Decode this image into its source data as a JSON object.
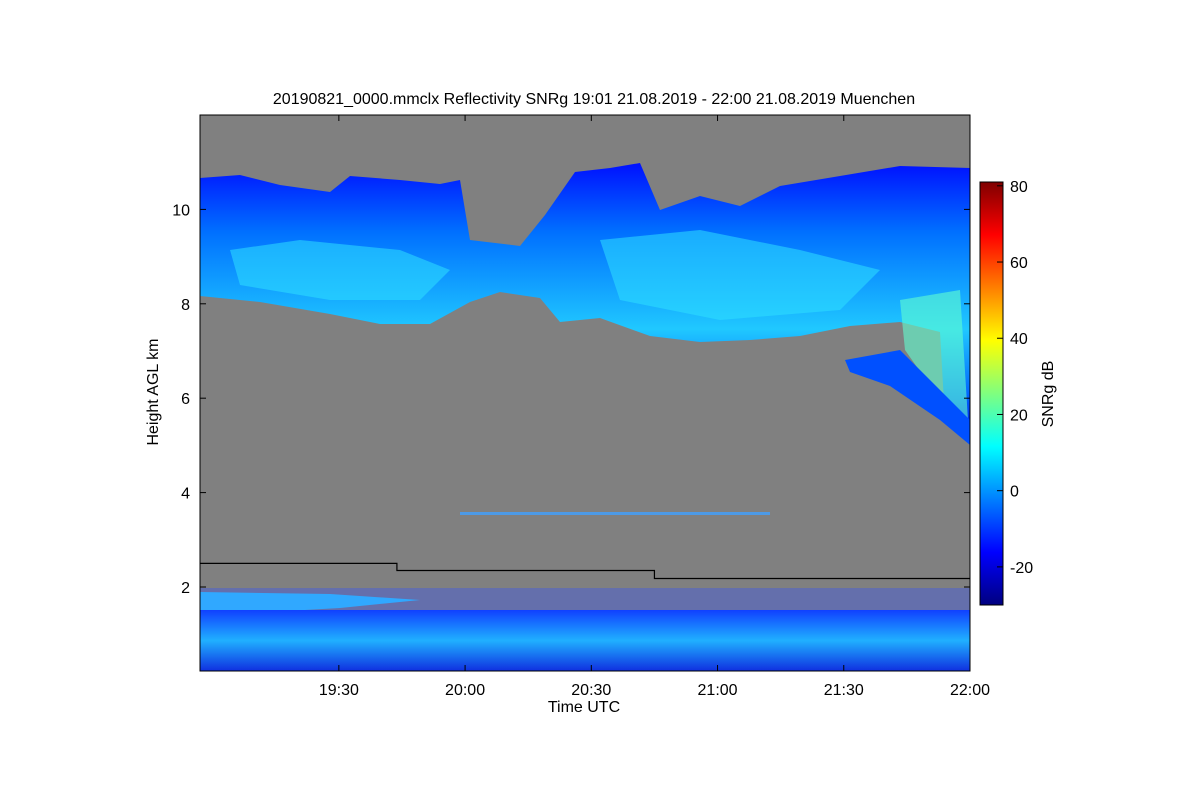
{
  "chart_data": {
    "type": "heatmap",
    "title": "20190821_0000.mmclx Reflectivity SNRg   19:01 21.08.2019 - 22:00 21.08.2019 Muenchen",
    "xlabel": "Time UTC",
    "ylabel": "Height AGL km",
    "colorbar_label": "SNRg dB",
    "colormap": "jet",
    "background": "#808080",
    "xlim": [
      18.95,
      22.0
    ],
    "xticks": [
      {
        "value": 19.5,
        "label": "19:30"
      },
      {
        "value": 20.0,
        "label": "20:00"
      },
      {
        "value": 20.5,
        "label": "20:30"
      },
      {
        "value": 21.0,
        "label": "21:00"
      },
      {
        "value": 21.5,
        "label": "21:30"
      },
      {
        "value": 22.0,
        "label": "22:00"
      }
    ],
    "ylim": [
      0.22,
      12.0
    ],
    "yticks": [
      2,
      4,
      6,
      8,
      10
    ],
    "clim": [
      -30,
      81
    ],
    "cticks": [
      -20,
      0,
      20,
      40,
      60,
      80
    ],
    "line": {
      "x": [
        18.95,
        19.73,
        19.73,
        20.75,
        20.75,
        22.0
      ],
      "y": [
        2.5,
        2.5,
        2.35,
        2.35,
        2.18,
        2.18
      ],
      "color": "#000000"
    }
  }
}
